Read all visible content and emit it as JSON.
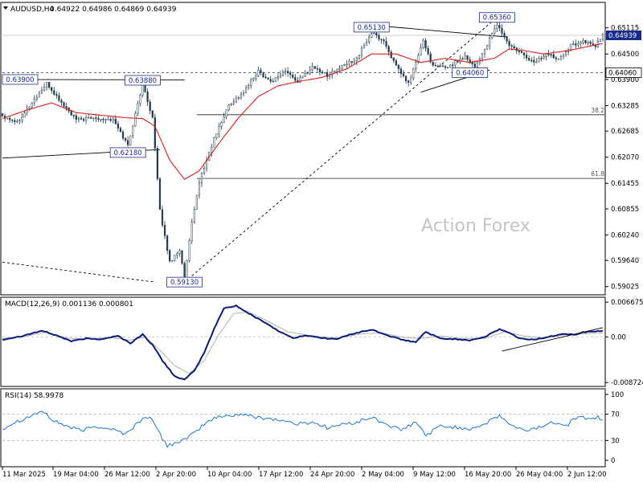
{
  "header": {
    "symbol_label": "AUDUSD,H4",
    "ohlc_text": "0.64922 0.64986 0.64869 0.64939"
  },
  "watermark": "Action Forex",
  "colors": {
    "bars": "#1f3a4a",
    "ma": "#dd1c1c",
    "macd_main": "#0a1a7a",
    "macd_signal": "#b0b0b0",
    "rsi": "#1a76d2",
    "annotation_border": "#1a2a8a",
    "price_tag_bg": "#1a2a8a"
  },
  "chart_data": [
    {
      "id": "price",
      "type": "candlestick",
      "title": "AUDUSD,H4",
      "y_ticks": [
        "0.65115",
        "0.64500",
        "0.63900",
        "0.63285",
        "0.62685",
        "0.62070",
        "0.61455",
        "0.60855",
        "0.60240",
        "0.59640",
        "0.59025"
      ],
      "ylim": [
        0.58925,
        0.6562
      ],
      "current_price_label": "0.64939",
      "current_price": 0.64939,
      "support_level_label": "0.64060",
      "support_level": 0.6406,
      "x_ticks": [
        "11 Mar 2025",
        "19 Mar 04:00",
        "26 Mar 12:00",
        "2 Apr 20:00",
        "10 Apr 04:00",
        "17 Apr 12:00",
        "24 Apr 20:00",
        "2 May 04:00",
        "9 May 12:00",
        "16 May 20:00",
        "26 May 04:00",
        "2 Jun 12:00"
      ],
      "annotations": [
        {
          "label": "0.63900",
          "value": 0.639,
          "bar": 0
        },
        {
          "label": "0.63880",
          "value": 0.6388,
          "bar": 57
        },
        {
          "label": "0.62180",
          "value": 0.6218,
          "bar": 51
        },
        {
          "label": "0.59130",
          "value": 0.5913,
          "bar": 74
        },
        {
          "label": "0.65130",
          "value": 0.6513,
          "bar": 150
        },
        {
          "label": "0.64060",
          "value": 0.6406,
          "bar": 190
        },
        {
          "label": "0.65360",
          "value": 0.6536,
          "bar": 201
        }
      ],
      "fib_levels": [
        {
          "label": "38.2",
          "value": 0.6307
        },
        {
          "label": "61.8",
          "value": 0.6157
        }
      ],
      "close_anchors": [
        [
          0,
          0.6305
        ],
        [
          6,
          0.629
        ],
        [
          14,
          0.635
        ],
        [
          18,
          0.638
        ],
        [
          24,
          0.6335
        ],
        [
          30,
          0.6295
        ],
        [
          38,
          0.63
        ],
        [
          45,
          0.6295
        ],
        [
          51,
          0.6235
        ],
        [
          57,
          0.638
        ],
        [
          61,
          0.63
        ],
        [
          64,
          0.608
        ],
        [
          68,
          0.596
        ],
        [
          72,
          0.599
        ],
        [
          74,
          0.592
        ],
        [
          77,
          0.605
        ],
        [
          80,
          0.615
        ],
        [
          86,
          0.625
        ],
        [
          92,
          0.633
        ],
        [
          98,
          0.636
        ],
        [
          104,
          0.641
        ],
        [
          109,
          0.6385
        ],
        [
          115,
          0.641
        ],
        [
          120,
          0.6385
        ],
        [
          126,
          0.642
        ],
        [
          132,
          0.64
        ],
        [
          138,
          0.642
        ],
        [
          144,
          0.644
        ],
        [
          150,
          0.65
        ],
        [
          155,
          0.648
        ],
        [
          160,
          0.642
        ],
        [
          165,
          0.638
        ],
        [
          171,
          0.648
        ],
        [
          175,
          0.642
        ],
        [
          181,
          0.642
        ],
        [
          188,
          0.6445
        ],
        [
          192,
          0.642
        ],
        [
          196,
          0.646
        ],
        [
          201,
          0.652
        ],
        [
          206,
          0.647
        ],
        [
          211,
          0.645
        ],
        [
          216,
          0.643
        ],
        [
          221,
          0.645
        ],
        [
          226,
          0.644
        ],
        [
          231,
          0.647
        ],
        [
          236,
          0.648
        ],
        [
          241,
          0.647
        ],
        [
          244,
          0.6494
        ]
      ],
      "ma_anchors": [
        [
          0,
          0.6298
        ],
        [
          10,
          0.6318
        ],
        [
          20,
          0.6335
        ],
        [
          30,
          0.6312
        ],
        [
          40,
          0.6306
        ],
        [
          50,
          0.63
        ],
        [
          57,
          0.6298
        ],
        [
          62,
          0.628
        ],
        [
          68,
          0.62
        ],
        [
          74,
          0.6155
        ],
        [
          80,
          0.6175
        ],
        [
          88,
          0.624
        ],
        [
          96,
          0.63
        ],
        [
          104,
          0.635
        ],
        [
          112,
          0.6375
        ],
        [
          120,
          0.6385
        ],
        [
          130,
          0.6395
        ],
        [
          140,
          0.6415
        ],
        [
          150,
          0.645
        ],
        [
          160,
          0.645
        ],
        [
          170,
          0.643
        ],
        [
          180,
          0.644
        ],
        [
          190,
          0.643
        ],
        [
          200,
          0.644
        ],
        [
          206,
          0.6462
        ],
        [
          212,
          0.6458
        ],
        [
          220,
          0.645
        ],
        [
          230,
          0.6458
        ],
        [
          240,
          0.647
        ],
        [
          244,
          0.6475
        ]
      ]
    },
    {
      "id": "macd",
      "type": "line",
      "title": "MACD(12,26,9) 0.001136 0.000801",
      "y_ticks": [
        "0.006675",
        "0.00",
        "-0.008724"
      ],
      "ylim": [
        -0.009,
        0.007
      ],
      "zero_label": "0.00",
      "series": [
        {
          "name": "MACD",
          "anchors": [
            [
              0,
              -0.0005
            ],
            [
              8,
              0.0002
            ],
            [
              16,
              0.0012
            ],
            [
              22,
              0.0003
            ],
            [
              28,
              -0.0008
            ],
            [
              34,
              -0.0003
            ],
            [
              40,
              -0.0004
            ],
            [
              47,
              0.0002
            ],
            [
              52,
              -0.0012
            ],
            [
              57,
              0.0005
            ],
            [
              61,
              -0.0015
            ],
            [
              65,
              -0.0045
            ],
            [
              70,
              -0.0075
            ],
            [
              74,
              -0.0082
            ],
            [
              78,
              -0.0065
            ],
            [
              82,
              -0.003
            ],
            [
              86,
              0.0015
            ],
            [
              90,
              0.0055
            ],
            [
              95,
              0.006
            ],
            [
              100,
              0.0045
            ],
            [
              106,
              0.003
            ],
            [
              112,
              0.0012
            ],
            [
              118,
              -0.0002
            ],
            [
              124,
              0.0003
            ],
            [
              130,
              -0.0002
            ],
            [
              136,
              -0.0004
            ],
            [
              142,
              0.0006
            ],
            [
              150,
              0.0014
            ],
            [
              156,
              0.0004
            ],
            [
              162,
              -0.0005
            ],
            [
              168,
              -0.001
            ],
            [
              172,
              0.001
            ],
            [
              178,
              -0.0003
            ],
            [
              184,
              -0.0004
            ],
            [
              190,
              -0.0006
            ],
            [
              196,
              0.0
            ],
            [
              202,
              0.0015
            ],
            [
              206,
              0.0008
            ],
            [
              210,
              -0.0003
            ],
            [
              216,
              -0.0005
            ],
            [
              222,
              0.0
            ],
            [
              228,
              0.0007
            ],
            [
              232,
              0.0004
            ],
            [
              236,
              0.0009
            ],
            [
              241,
              0.0011
            ],
            [
              244,
              0.00114
            ]
          ]
        },
        {
          "name": "Signal",
          "anchors": [
            [
              0,
              -0.0003
            ],
            [
              10,
              0.0002
            ],
            [
              18,
              0.0009
            ],
            [
              26,
              -0.0002
            ],
            [
              34,
              -0.0004
            ],
            [
              44,
              -0.0001
            ],
            [
              52,
              -0.0006
            ],
            [
              58,
              0.0
            ],
            [
              64,
              -0.0025
            ],
            [
              70,
              -0.0055
            ],
            [
              76,
              -0.007
            ],
            [
              82,
              -0.0045
            ],
            [
              88,
              0.0005
            ],
            [
              94,
              0.0045
            ],
            [
              100,
              0.0048
            ],
            [
              108,
              0.003
            ],
            [
              116,
              0.001
            ],
            [
              126,
              0.0002
            ],
            [
              136,
              -0.0002
            ],
            [
              146,
              0.0006
            ],
            [
              154,
              0.0008
            ],
            [
              162,
              0.0
            ],
            [
              170,
              -0.0003
            ],
            [
              178,
              0.0002
            ],
            [
              186,
              -0.0003
            ],
            [
              196,
              -0.0003
            ],
            [
              204,
              0.001
            ],
            [
              212,
              0.0002
            ],
            [
              220,
              -0.0002
            ],
            [
              228,
              0.0004
            ],
            [
              236,
              0.0006
            ],
            [
              244,
              0.0008
            ]
          ]
        }
      ],
      "trendline": [
        [
          203,
          -0.0027
        ],
        [
          244,
          0.0018
        ]
      ]
    },
    {
      "id": "rsi",
      "type": "line",
      "title": "RSI(14) 58.9978",
      "y_ticks": [
        "100",
        "70",
        "30",
        "0"
      ],
      "ylim": [
        0,
        100
      ],
      "levels": [
        70,
        30
      ],
      "series": [
        {
          "name": "RSI(14)",
          "anchors": [
            [
              0,
              48
            ],
            [
              5,
              58
            ],
            [
              10,
              65
            ],
            [
              16,
              75
            ],
            [
              20,
              62
            ],
            [
              26,
              52
            ],
            [
              32,
              45
            ],
            [
              38,
              52
            ],
            [
              44,
              48
            ],
            [
              50,
              40
            ],
            [
              56,
              60
            ],
            [
              60,
              68
            ],
            [
              63,
              45
            ],
            [
              67,
              22
            ],
            [
              71,
              28
            ],
            [
              75,
              32
            ],
            [
              79,
              45
            ],
            [
              83,
              58
            ],
            [
              87,
              65
            ],
            [
              92,
              68
            ],
            [
              97,
              70
            ],
            [
              102,
              66
            ],
            [
              108,
              64
            ],
            [
              114,
              60
            ],
            [
              120,
              55
            ],
            [
              126,
              58
            ],
            [
              132,
              50
            ],
            [
              138,
              54
            ],
            [
              144,
              58
            ],
            [
              150,
              65
            ],
            [
              156,
              55
            ],
            [
              162,
              45
            ],
            [
              168,
              58
            ],
            [
              172,
              38
            ],
            [
              178,
              52
            ],
            [
              184,
              50
            ],
            [
              190,
              48
            ],
            [
              196,
              55
            ],
            [
              202,
              68
            ],
            [
              207,
              52
            ],
            [
              212,
              45
            ],
            [
              218,
              50
            ],
            [
              224,
              58
            ],
            [
              230,
              55
            ],
            [
              234,
              68
            ],
            [
              238,
              62
            ],
            [
              242,
              66
            ],
            [
              244,
              59
            ]
          ]
        }
      ]
    }
  ]
}
